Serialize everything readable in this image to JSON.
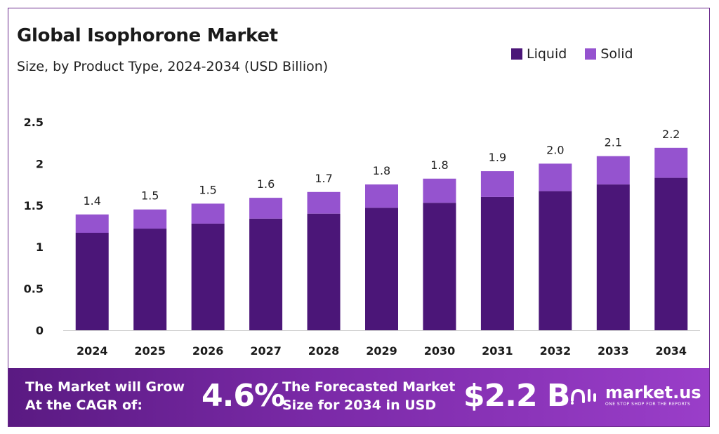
{
  "header": {
    "title": "Global Isophorone Market",
    "subtitle": "Size, by Product Type, 2024-2034 (USD Billion)"
  },
  "legend": [
    {
      "label": "Liquid",
      "color": "#4b1678"
    },
    {
      "label": "Solid",
      "color": "#9553cf"
    }
  ],
  "chart_data": {
    "type": "bar",
    "stacked": true,
    "categories": [
      "2024",
      "2025",
      "2026",
      "2027",
      "2028",
      "2029",
      "2030",
      "2031",
      "2032",
      "2033",
      "2034"
    ],
    "series": [
      {
        "name": "Liquid",
        "color": "#4b1678",
        "values": [
          1.17,
          1.22,
          1.28,
          1.34,
          1.4,
          1.47,
          1.53,
          1.6,
          1.67,
          1.75,
          1.83
        ]
      },
      {
        "name": "Solid",
        "color": "#9553cf",
        "values": [
          0.22,
          0.23,
          0.24,
          0.25,
          0.26,
          0.28,
          0.29,
          0.31,
          0.33,
          0.34,
          0.36
        ]
      }
    ],
    "total_labels": [
      "1.4",
      "1.5",
      "1.5",
      "1.6",
      "1.7",
      "1.8",
      "1.8",
      "1.9",
      "2.0",
      "2.1",
      "2.2"
    ],
    "ylim": [
      0,
      2.5
    ],
    "yticks": [
      "0",
      "0.5",
      "1",
      "1.5",
      "2",
      "2.5"
    ],
    "ytick_values": [
      0,
      0.5,
      1,
      1.5,
      2,
      2.5
    ],
    "grid": false,
    "legend_position": "top-right"
  },
  "footer": {
    "cagr_text": "The Market will Grow At the CAGR of:",
    "cagr_value": "4.6%",
    "forecast_text": "The Forecasted Market Size for 2034 in USD",
    "forecast_value": "$2.2 B",
    "brand_name": "market.us",
    "brand_tagline": "ONE STOP SHOP FOR THE REPORTS"
  }
}
